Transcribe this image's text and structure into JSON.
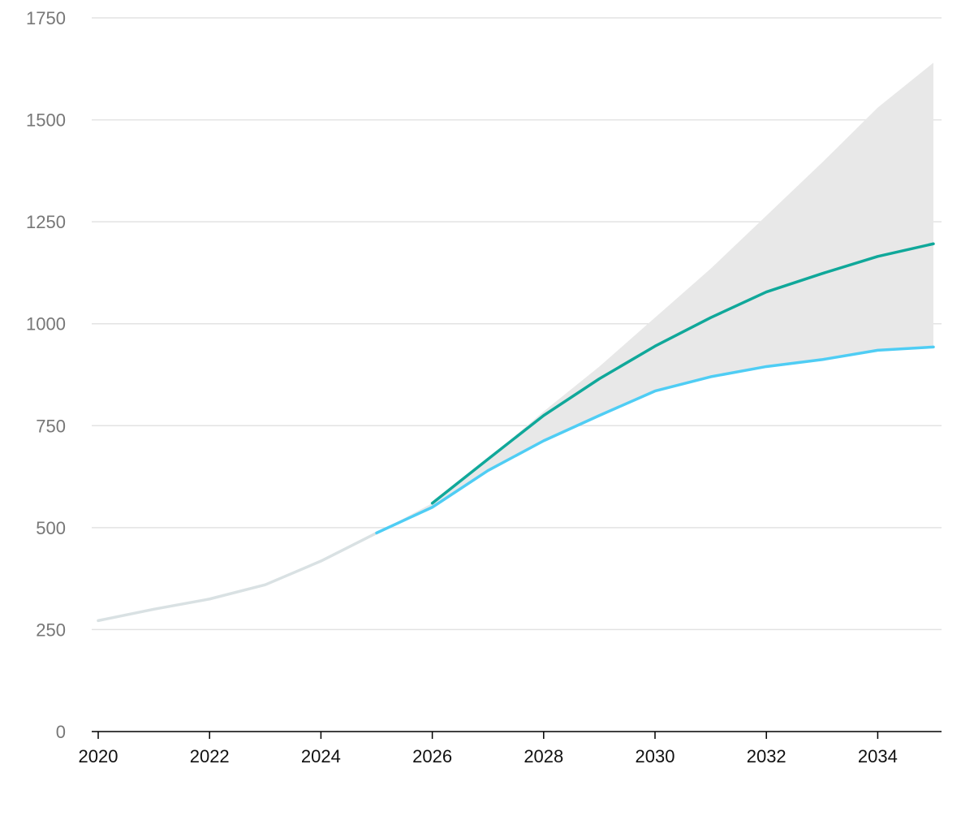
{
  "chart_data": {
    "type": "line",
    "x_ticks": [
      "2020",
      "2022",
      "2024",
      "2026",
      "2028",
      "2030",
      "2032",
      "2034"
    ],
    "y_ticks": [
      "0",
      "250",
      "500",
      "750",
      "1000",
      "1250",
      "1500",
      "1750"
    ],
    "xlim": [
      2020,
      2035
    ],
    "ylim": [
      0,
      1750
    ],
    "grid": true,
    "legend": "none",
    "series": [
      {
        "role": "historical",
        "color": "#d9e1e3",
        "x": [
          2020,
          2021,
          2022,
          2023,
          2024,
          2025
        ],
        "y": [
          272,
          300,
          325,
          360,
          418,
          487
        ]
      },
      {
        "role": "lower-projection",
        "color": "#4fcdf4",
        "x": [
          2025,
          2026,
          2027,
          2028,
          2029,
          2030,
          2031,
          2032,
          2033,
          2034,
          2035
        ],
        "y": [
          487,
          550,
          640,
          713,
          775,
          835,
          870,
          895,
          912,
          935,
          943
        ]
      },
      {
        "role": "central-projection",
        "color": "#10a89a",
        "x": [
          2026,
          2027,
          2028,
          2029,
          2030,
          2031,
          2032,
          2033,
          2034,
          2035
        ],
        "y": [
          560,
          668,
          775,
          865,
          945,
          1015,
          1078,
          1123,
          1165,
          1196
        ]
      }
    ],
    "band": {
      "role": "projection-range",
      "color": "#e8e8e8",
      "x": [
        2025,
        2026,
        2027,
        2028,
        2029,
        2030,
        2031,
        2032,
        2033,
        2034,
        2035
      ],
      "upper": [
        487,
        560,
        668,
        785,
        895,
        1015,
        1135,
        1265,
        1395,
        1530,
        1640
      ],
      "lower": [
        487,
        550,
        640,
        713,
        775,
        835,
        870,
        895,
        912,
        935,
        943
      ]
    },
    "colors": {
      "grid": "#e3e3e3",
      "axis": "#000000",
      "y_tick_text": "#777777",
      "x_tick_text": "#111111"
    }
  }
}
